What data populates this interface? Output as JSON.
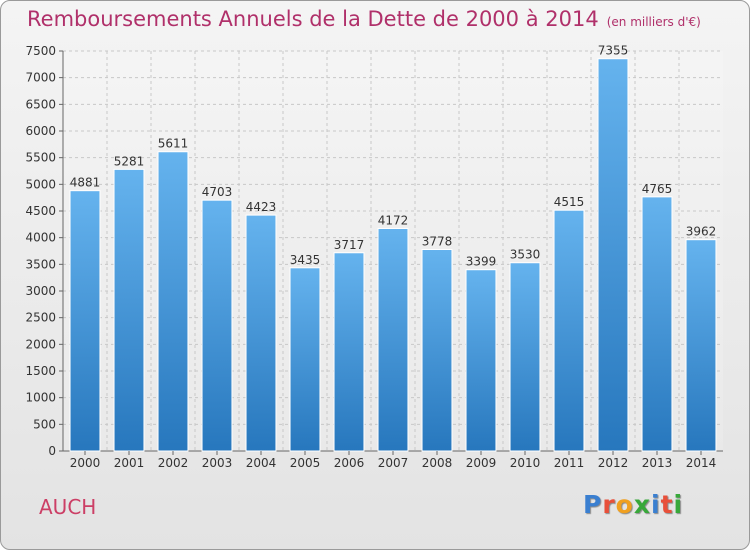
{
  "title": "Remboursements Annuels de la Dette de 2000 à 2014",
  "unit_note": "(en milliers d'€)",
  "city": "AUCH",
  "logo": {
    "text": "Proxiti",
    "colors": [
      "#3a7fd0",
      "#e8503a",
      "#f0a020",
      "#38a83a",
      "#3a7fd0",
      "#e8503a",
      "#38a83a"
    ]
  },
  "colors": {
    "bar_top": "#65b3ee",
    "bar_bottom": "#2777bd",
    "title": "#b0306a",
    "city": "#cc3f66",
    "grid": "#c8c8c8"
  },
  "chart_data": {
    "type": "bar",
    "categories": [
      "2000",
      "2001",
      "2002",
      "2003",
      "2004",
      "2005",
      "2006",
      "2007",
      "2008",
      "2009",
      "2010",
      "2011",
      "2012",
      "2013",
      "2014"
    ],
    "values": [
      4881,
      5281,
      5611,
      4703,
      4423,
      3435,
      3717,
      4172,
      3778,
      3399,
      3530,
      4515,
      7355,
      4765,
      3962
    ],
    "ylim": [
      0,
      7500
    ],
    "yticks": [
      0,
      500,
      1000,
      1500,
      2000,
      2500,
      3000,
      3500,
      4000,
      4500,
      5000,
      5500,
      6000,
      6500,
      7000,
      7500
    ],
    "grid": true,
    "title": "Remboursements Annuels de la Dette de 2000 à 2014",
    "xlabel": "",
    "ylabel": ""
  }
}
